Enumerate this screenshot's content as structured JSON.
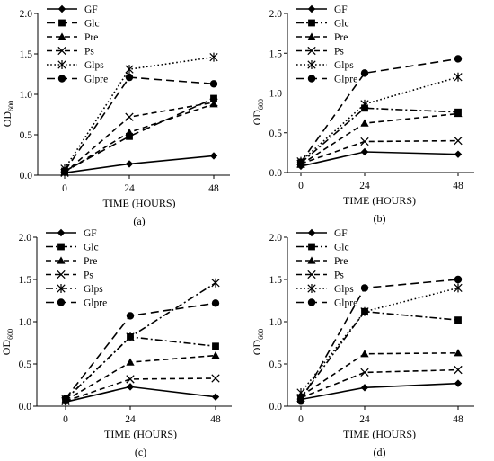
{
  "chart_data": [
    {
      "type": "line",
      "panel_label": "(a)",
      "x": [
        0,
        24,
        48
      ],
      "x_tick_labels": [
        "0",
        "24",
        "48"
      ],
      "xlabel": "TIME (HOURS)",
      "ylabel_main": "OD",
      "ylabel_sub": "600",
      "ylim": [
        0,
        2.0
      ],
      "y_ticks": [
        0,
        0.5,
        1.0,
        1.5,
        2.0
      ],
      "y_tick_labels": [
        "0.0",
        "0.5",
        "1.0",
        "1.5",
        "2.0"
      ],
      "legend_position": "top-left",
      "grid": false,
      "series": [
        {
          "name": "GF",
          "marker": "diamond",
          "dash": "solid",
          "values": [
            0.03,
            0.14,
            0.24
          ]
        },
        {
          "name": "Glc",
          "marker": "square",
          "dash": "long-dash",
          "values": [
            0.05,
            0.48,
            0.95
          ]
        },
        {
          "name": "Pre",
          "marker": "triangle",
          "dash": "dash",
          "values": [
            0.04,
            0.53,
            0.88
          ]
        },
        {
          "name": "Ps",
          "marker": "x",
          "dash": "dash",
          "values": [
            0.03,
            0.72,
            0.9
          ]
        },
        {
          "name": "Glps",
          "marker": "star",
          "dash": "dot",
          "values": [
            0.08,
            1.31,
            1.46
          ]
        },
        {
          "name": "Glpre",
          "marker": "circle",
          "dash": "long-dash",
          "values": [
            0.05,
            1.21,
            1.13
          ]
        }
      ]
    },
    {
      "type": "line",
      "panel_label": "(b)",
      "x": [
        0,
        24,
        48
      ],
      "x_tick_labels": [
        "0",
        "24",
        "48"
      ],
      "xlabel": "TIME (HOURS)",
      "ylabel_main": "OD",
      "ylabel_sub": "600",
      "ylim": [
        0,
        2.0
      ],
      "y_ticks": [
        0,
        0.5,
        1.0,
        1.5,
        2.0
      ],
      "y_tick_labels": [
        "0.0",
        "0.5",
        "1.0",
        "1.5",
        "2.0"
      ],
      "legend_position": "top-left",
      "grid": false,
      "series": [
        {
          "name": "GF",
          "marker": "diamond",
          "dash": "solid",
          "values": [
            0.08,
            0.26,
            0.23
          ]
        },
        {
          "name": "Glc",
          "marker": "square",
          "dash": "dash-dot",
          "values": [
            0.12,
            0.81,
            0.76
          ]
        },
        {
          "name": "Pre",
          "marker": "triangle",
          "dash": "dash",
          "values": [
            0.1,
            0.62,
            0.74
          ]
        },
        {
          "name": "Ps",
          "marker": "x",
          "dash": "dash",
          "values": [
            0.11,
            0.39,
            0.4
          ]
        },
        {
          "name": "Glps",
          "marker": "star",
          "dash": "dot",
          "values": [
            0.14,
            0.86,
            1.2
          ]
        },
        {
          "name": "Glpre",
          "marker": "circle",
          "dash": "long-dash",
          "values": [
            0.13,
            1.25,
            1.43
          ]
        }
      ]
    },
    {
      "type": "line",
      "panel_label": "(c)",
      "x": [
        0,
        24,
        48
      ],
      "x_tick_labels": [
        "0",
        "24",
        "48"
      ],
      "xlabel": "TIME (HOURS)",
      "ylabel_main": "OD",
      "ylabel_sub": "600",
      "ylim": [
        0,
        2.0
      ],
      "y_ticks": [
        0,
        0.5,
        1.0,
        1.5,
        2.0
      ],
      "y_tick_labels": [
        "0.0",
        "0.5",
        "1.0",
        "1.5",
        "2.0"
      ],
      "legend_position": "top-left",
      "grid": false,
      "series": [
        {
          "name": "GF",
          "marker": "diamond",
          "dash": "solid",
          "values": [
            0.05,
            0.23,
            0.11
          ]
        },
        {
          "name": "Glc",
          "marker": "square",
          "dash": "dash-dot",
          "values": [
            0.08,
            0.82,
            0.71
          ]
        },
        {
          "name": "Pre",
          "marker": "triangle",
          "dash": "dash",
          "values": [
            0.07,
            0.52,
            0.6
          ]
        },
        {
          "name": "Ps",
          "marker": "x",
          "dash": "dash",
          "values": [
            0.06,
            0.32,
            0.33
          ]
        },
        {
          "name": "Glps",
          "marker": "star",
          "dash": "dash-dot",
          "values": [
            0.08,
            0.82,
            1.46
          ]
        },
        {
          "name": "Glpre",
          "marker": "circle",
          "dash": "long-dash",
          "values": [
            0.09,
            1.07,
            1.22
          ]
        }
      ]
    },
    {
      "type": "line",
      "panel_label": "(d)",
      "x": [
        0,
        24,
        48
      ],
      "x_tick_labels": [
        "0",
        "24",
        "48"
      ],
      "xlabel": "TIME (HOURS)",
      "ylabel_main": "OD",
      "ylabel_sub": "600",
      "ylim": [
        0,
        2.0
      ],
      "y_ticks": [
        0,
        0.5,
        1.0,
        1.5,
        2.0
      ],
      "y_tick_labels": [
        "0.0",
        "0.5",
        "1.0",
        "1.5",
        "2.0"
      ],
      "legend_position": "top-left",
      "grid": false,
      "series": [
        {
          "name": "GF",
          "marker": "diamond",
          "dash": "solid",
          "values": [
            0.08,
            0.22,
            0.27
          ]
        },
        {
          "name": "Glc",
          "marker": "square",
          "dash": "dash-dot",
          "values": [
            0.1,
            1.12,
            1.02
          ]
        },
        {
          "name": "Pre",
          "marker": "triangle",
          "dash": "dash",
          "values": [
            0.12,
            0.62,
            0.63
          ]
        },
        {
          "name": "Ps",
          "marker": "x",
          "dash": "dash",
          "values": [
            0.1,
            0.4,
            0.43
          ]
        },
        {
          "name": "Glps",
          "marker": "star",
          "dash": "dot",
          "values": [
            0.16,
            1.12,
            1.4
          ]
        },
        {
          "name": "Glpre",
          "marker": "circle",
          "dash": "long-dash",
          "values": [
            0.06,
            1.4,
            1.5
          ]
        }
      ]
    }
  ]
}
